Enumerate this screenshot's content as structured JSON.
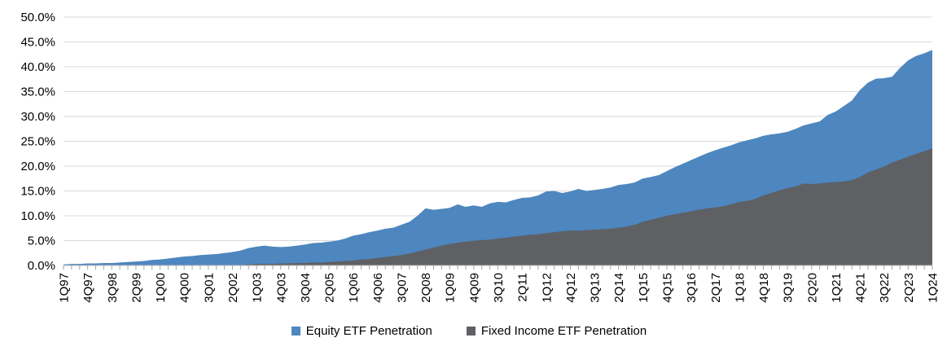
{
  "chart_data": {
    "type": "area",
    "mode": "overlapping",
    "title": "",
    "xlabel": "",
    "ylabel": "",
    "grid": "horizontal",
    "legend_position": "bottom-center",
    "y_axis": {
      "min": 0,
      "max": 50,
      "step": 5,
      "tick_labels": [
        "0.0%",
        "5.0%",
        "10.0%",
        "15.0%",
        "20.0%",
        "25.0%",
        "30.0%",
        "35.0%",
        "40.0%",
        "45.0%",
        "50.0%"
      ]
    },
    "x_axis": {
      "unit": "quarter",
      "first_point": "1Q97",
      "last_point": "1Q24",
      "points_per_label": 3,
      "tick_labels": [
        "1Q97",
        "4Q97",
        "3Q98",
        "2Q99",
        "1Q00",
        "4Q00",
        "3Q01",
        "2Q02",
        "1Q03",
        "4Q03",
        "3Q04",
        "2Q05",
        "1Q06",
        "4Q06",
        "3Q07",
        "2Q08",
        "1Q09",
        "4Q09",
        "3Q10",
        "2Q11",
        "1Q12",
        "4Q12",
        "3Q13",
        "2Q14",
        "1Q15",
        "4Q15",
        "3Q16",
        "2Q17",
        "1Q18",
        "4Q18",
        "3Q19",
        "2Q20",
        "1Q21",
        "4Q21",
        "3Q22",
        "2Q23",
        "1Q24"
      ]
    },
    "series": [
      {
        "name": "Equity ETF Penetration",
        "color": "#4E86BF",
        "values": [
          0.2,
          0.3,
          0.3,
          0.4,
          0.4,
          0.5,
          0.5,
          0.6,
          0.7,
          0.8,
          0.9,
          1.1,
          1.2,
          1.4,
          1.6,
          1.8,
          1.9,
          2.1,
          2.2,
          2.3,
          2.5,
          2.7,
          3.0,
          3.5,
          3.8,
          4.0,
          3.8,
          3.7,
          3.8,
          4.0,
          4.2,
          4.5,
          4.6,
          4.8,
          5.0,
          5.4,
          6.0,
          6.3,
          6.7,
          7.0,
          7.4,
          7.6,
          8.2,
          8.8,
          10.0,
          11.5,
          11.2,
          11.4,
          11.6,
          12.3,
          11.8,
          12.1,
          11.8,
          12.5,
          12.8,
          12.7,
          13.2,
          13.6,
          13.7,
          14.1,
          14.9,
          15.0,
          14.6,
          14.9,
          15.4,
          15.0,
          15.2,
          15.4,
          15.7,
          16.2,
          16.4,
          16.7,
          17.5,
          17.8,
          18.2,
          19.0,
          19.8,
          20.5,
          21.2,
          21.9,
          22.6,
          23.2,
          23.7,
          24.2,
          24.8,
          25.2,
          25.6,
          26.1,
          26.4,
          26.6,
          26.9,
          27.5,
          28.2,
          28.6,
          29.0,
          30.3,
          31.0,
          32.1,
          33.2,
          35.3,
          36.8,
          37.6,
          37.7,
          38.0,
          39.8,
          41.3,
          42.2,
          42.7,
          43.4
        ]
      },
      {
        "name": "Fixed Income ETF Penetration",
        "color": "#5E6064",
        "values": [
          0,
          0,
          0,
          0,
          0,
          0,
          0,
          0,
          0,
          0,
          0,
          0,
          0,
          0,
          0,
          0,
          0,
          0,
          0,
          0,
          0,
          0,
          0.1,
          0.2,
          0.3,
          0.3,
          0.3,
          0.4,
          0.4,
          0.5,
          0.5,
          0.6,
          0.6,
          0.7,
          0.8,
          0.9,
          1.0,
          1.2,
          1.3,
          1.5,
          1.7,
          1.9,
          2.1,
          2.4,
          2.8,
          3.2,
          3.6,
          4.0,
          4.3,
          4.6,
          4.8,
          5.0,
          5.1,
          5.2,
          5.4,
          5.6,
          5.8,
          6.0,
          6.2,
          6.3,
          6.5,
          6.7,
          6.9,
          7.0,
          7.0,
          7.1,
          7.2,
          7.3,
          7.4,
          7.6,
          7.8,
          8.2,
          8.8,
          9.2,
          9.6,
          10.0,
          10.3,
          10.6,
          10.9,
          11.2,
          11.5,
          11.7,
          11.9,
          12.3,
          12.8,
          13.0,
          13.4,
          14.1,
          14.6,
          15.1,
          15.6,
          15.9,
          16.5,
          16.4,
          16.5,
          16.7,
          16.8,
          16.9,
          17.2,
          17.8,
          18.7,
          19.3,
          19.9,
          20.7,
          21.3,
          21.9,
          22.5,
          23.0,
          23.6
        ]
      }
    ]
  },
  "legend": {
    "items": [
      {
        "label": "Equity ETF Penetration",
        "color": "#4E86BF"
      },
      {
        "label": "Fixed Income ETF Penetration",
        "color": "#5E6064"
      }
    ]
  },
  "colors": {
    "background": "#ffffff",
    "gridline": "#D9D9D9",
    "axis_line": "#BFBFBF",
    "tick_mark": "#A6A6A6",
    "label_text": "#000000"
  }
}
